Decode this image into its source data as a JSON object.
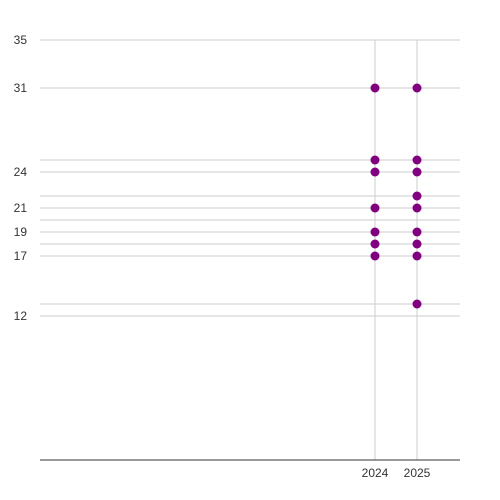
{
  "chart_data": {
    "type": "scatter",
    "title": "",
    "xlabel": "",
    "ylabel": "",
    "x_categories": [
      "2024",
      "2025"
    ],
    "y_ticks": [
      12,
      17,
      19,
      21,
      24,
      31,
      35
    ],
    "y_extra_gridlines": [
      13,
      18,
      20,
      22,
      25
    ],
    "ylim": [
      0,
      35
    ],
    "grid": true,
    "legend": "none",
    "colors": {
      "point": "#800080",
      "grid": "#cccccc",
      "axis": "#333333",
      "text": "#333333"
    },
    "points": [
      {
        "x": "2024",
        "y": 31
      },
      {
        "x": "2024",
        "y": 25
      },
      {
        "x": "2024",
        "y": 24
      },
      {
        "x": "2024",
        "y": 21
      },
      {
        "x": "2024",
        "y": 19
      },
      {
        "x": "2024",
        "y": 18
      },
      {
        "x": "2024",
        "y": 17
      },
      {
        "x": "2025",
        "y": 31
      },
      {
        "x": "2025",
        "y": 25
      },
      {
        "x": "2025",
        "y": 24
      },
      {
        "x": "2025",
        "y": 22
      },
      {
        "x": "2025",
        "y": 21
      },
      {
        "x": "2025",
        "y": 19
      },
      {
        "x": "2025",
        "y": 18
      },
      {
        "x": "2025",
        "y": 17
      },
      {
        "x": "2025",
        "y": 13
      }
    ]
  }
}
